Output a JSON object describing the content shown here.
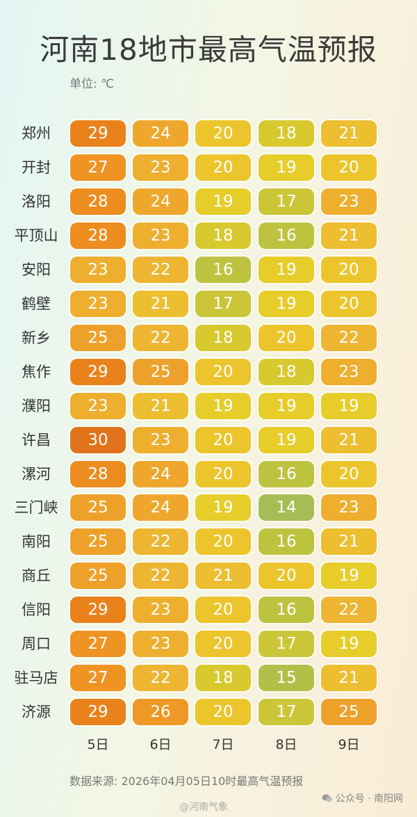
{
  "title": "河南18地市最高气温预报",
  "unit": "单位: ℃",
  "source": "数据来源: 2026年04月05日10时最高气温预报",
  "watermark_weibo": "@河南气象",
  "watermark_wechat": "公众号 · 南阳网",
  "colors": {
    "30": "#e0731a",
    "29": "#ea821c",
    "28": "#ed8c1f",
    "27": "#ef9423",
    "26": "#ee9825",
    "25": "#eea12a",
    "24": "#eea72c",
    "23": "#eeae2e",
    "22": "#eeb532",
    "21": "#ecbe30",
    "20": "#ecc52c",
    "19": "#e6cd2a",
    "18": "#d8c92e",
    "17": "#cbc637",
    "16": "#bec33f",
    "15": "#b2c049",
    "14": "#a6bd55"
  },
  "chart_data": {
    "type": "table",
    "title": "河南18地市最高气温预报",
    "unit": "℃",
    "days": [
      "5日",
      "6日",
      "7日",
      "8日",
      "9日"
    ],
    "rows": [
      {
        "city": "郑州",
        "values": [
          29,
          24,
          20,
          18,
          21
        ]
      },
      {
        "city": "开封",
        "values": [
          27,
          23,
          20,
          19,
          20
        ]
      },
      {
        "city": "洛阳",
        "values": [
          28,
          24,
          19,
          17,
          23
        ]
      },
      {
        "city": "平顶山",
        "values": [
          28,
          23,
          18,
          16,
          21
        ]
      },
      {
        "city": "安阳",
        "values": [
          23,
          22,
          16,
          19,
          20
        ]
      },
      {
        "city": "鹤壁",
        "values": [
          23,
          21,
          17,
          19,
          20
        ]
      },
      {
        "city": "新乡",
        "values": [
          25,
          22,
          18,
          20,
          22
        ]
      },
      {
        "city": "焦作",
        "values": [
          29,
          25,
          20,
          18,
          23
        ]
      },
      {
        "city": "濮阳",
        "values": [
          23,
          21,
          19,
          19,
          19
        ]
      },
      {
        "city": "许昌",
        "values": [
          30,
          23,
          20,
          19,
          21
        ]
      },
      {
        "city": "漯河",
        "values": [
          28,
          24,
          20,
          16,
          20
        ]
      },
      {
        "city": "三门峡",
        "values": [
          25,
          24,
          19,
          14,
          23
        ]
      },
      {
        "city": "南阳",
        "values": [
          25,
          22,
          20,
          16,
          21
        ]
      },
      {
        "city": "商丘",
        "values": [
          25,
          22,
          21,
          20,
          19
        ]
      },
      {
        "city": "信阳",
        "values": [
          29,
          23,
          20,
          16,
          22
        ]
      },
      {
        "city": "周口",
        "values": [
          27,
          23,
          20,
          17,
          19
        ]
      },
      {
        "city": "驻马店",
        "values": [
          27,
          22,
          18,
          15,
          21
        ]
      },
      {
        "city": "济源",
        "values": [
          29,
          26,
          20,
          17,
          25
        ]
      }
    ]
  }
}
